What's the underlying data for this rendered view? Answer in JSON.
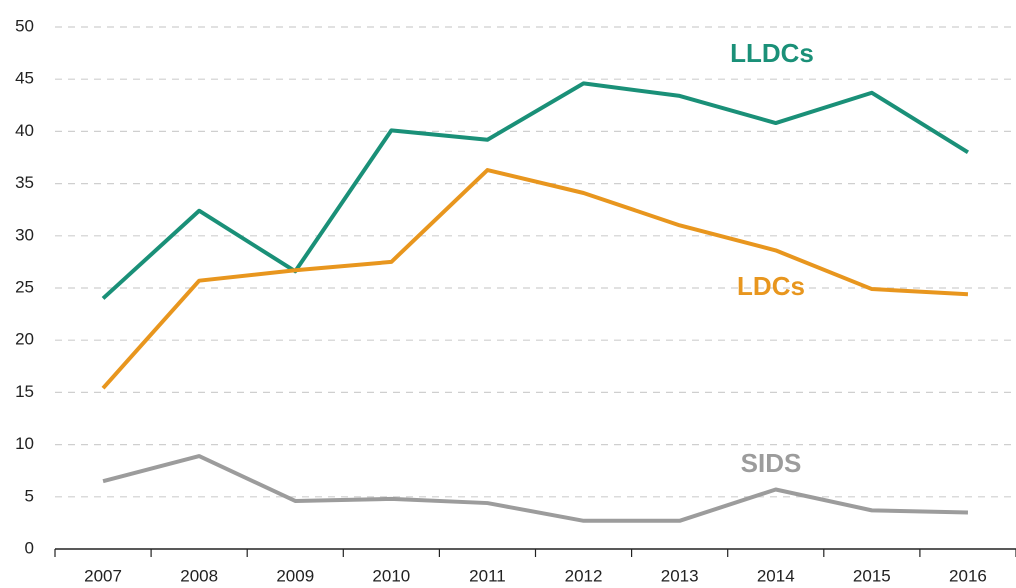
{
  "chart_data": {
    "type": "line",
    "categories": [
      "2007",
      "2008",
      "2009",
      "2010",
      "2011",
      "2012",
      "2013",
      "2014",
      "2015",
      "2016"
    ],
    "series": [
      {
        "name": "LLDCs",
        "color": "#1a9078",
        "values": [
          24.0,
          32.4,
          26.6,
          40.1,
          39.2,
          44.6,
          43.4,
          40.8,
          43.7,
          38.0
        ]
      },
      {
        "name": "LDCs",
        "color": "#e8961e",
        "values": [
          15.4,
          25.7,
          26.7,
          27.5,
          36.3,
          34.1,
          31.0,
          28.6,
          24.9,
          24.4
        ]
      },
      {
        "name": "SIDS",
        "color": "#9c9c9c",
        "values": [
          6.5,
          8.9,
          4.6,
          4.8,
          4.4,
          2.7,
          2.7,
          5.7,
          3.7,
          3.5
        ]
      }
    ],
    "ylim": [
      0,
      50
    ],
    "yticks": [
      0,
      5,
      10,
      15,
      20,
      25,
      30,
      35,
      40,
      45,
      50
    ],
    "grid": true
  }
}
